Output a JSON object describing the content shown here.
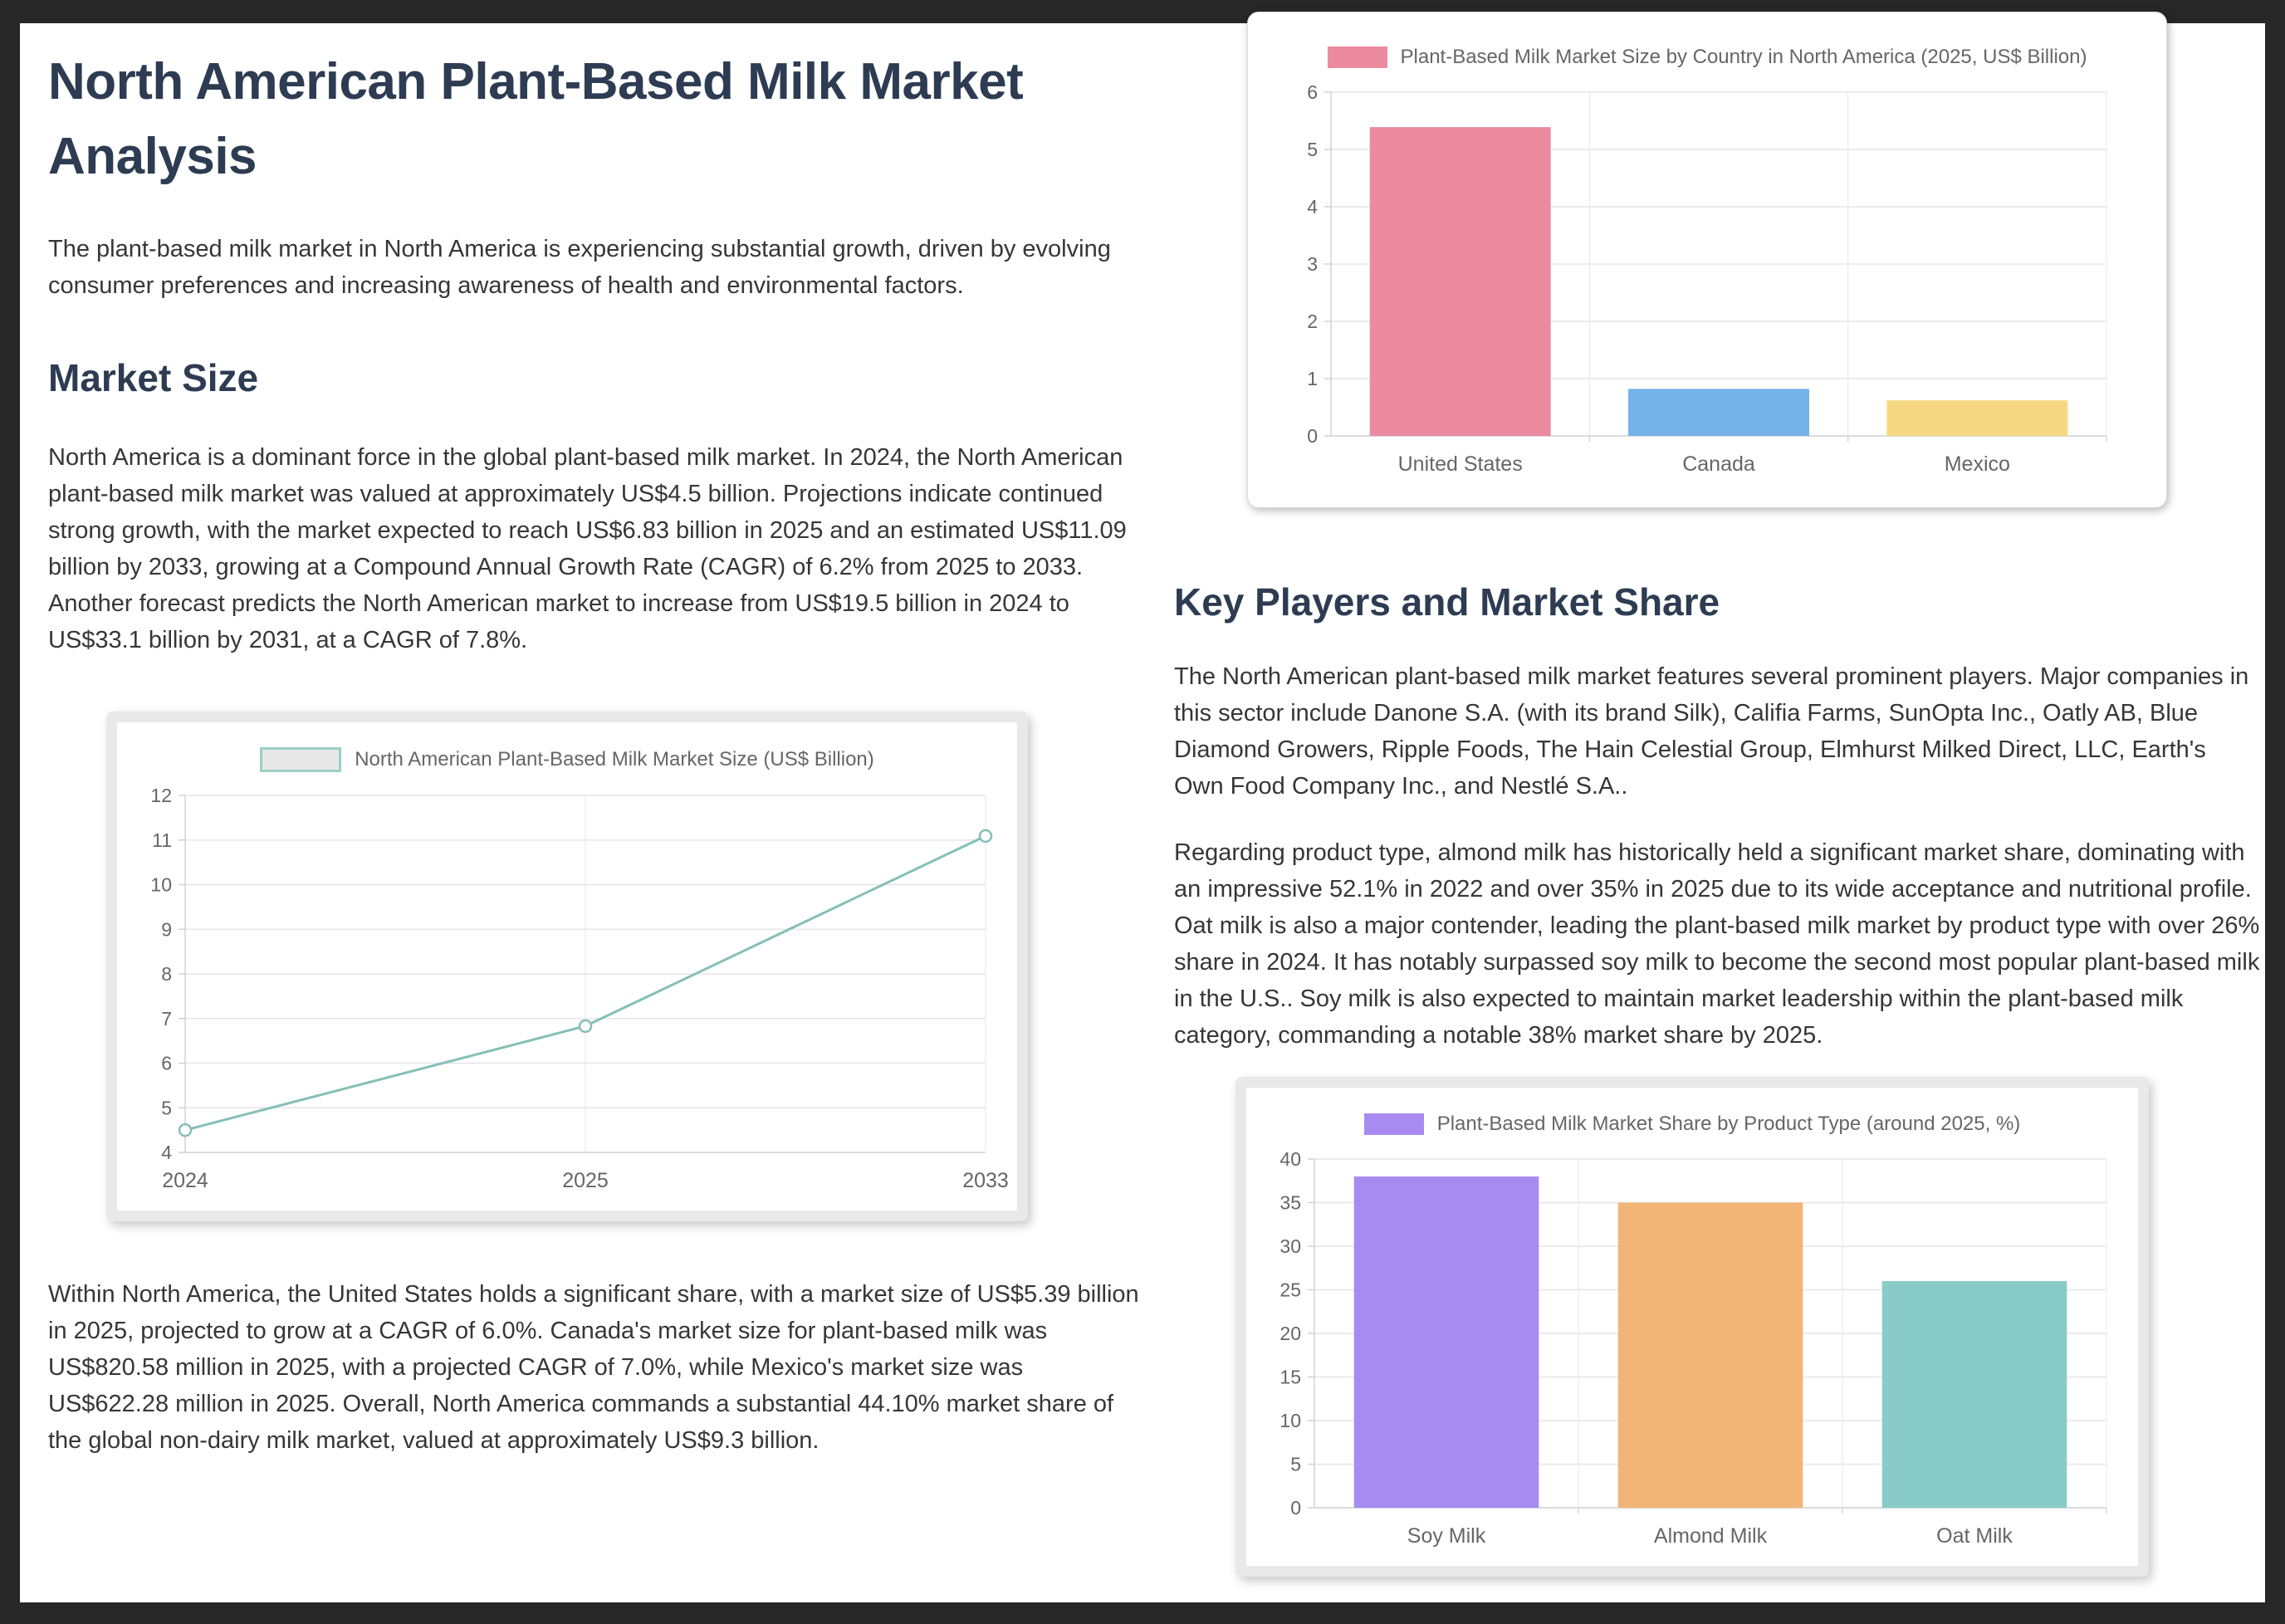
{
  "page": {
    "title": "North American Plant-Based Milk Market Analysis",
    "intro": "The plant-based milk market in North America is experiencing substantial growth, driven by evolving consumer preferences and increasing awareness of health and environmental factors.",
    "market_size": {
      "heading": "Market Size",
      "para1": "North America is a dominant force in the global plant-based milk market. In 2024, the North American plant-based milk market was valued at approximately US$4.5 billion. Projections indicate continued strong growth, with the market expected to reach US$6.83 billion in 2025 and an estimated US$11.09 billion by 2033, growing at a Compound Annual Growth Rate (CAGR) of 6.2% from 2025 to 2033. Another forecast predicts the North American market to increase from US$19.5 billion in 2024 to US$33.1 billion by 2031, at a CAGR of 7.8%.",
      "para2": "Within North America, the United States holds a significant share, with a market size of US$5.39 billion in 2025, projected to grow at a CAGR of 6.0%. Canada's market size for plant-based milk was US$820.58 million in 2025, with a projected CAGR of 7.0%, while Mexico's market size was US$622.28 million in 2025. Overall, North America commands a substantial 44.10% market share of the global non-dairy milk market, valued at approximately US$9.3 billion."
    },
    "key_players": {
      "heading": "Key Players and Market Share",
      "para1": "The North American plant-based milk market features several prominent players. Major companies in this sector include Danone S.A. (with its brand Silk), Califia Farms, SunOpta Inc., Oatly AB, Blue Diamond Growers, Ripple Foods, The Hain Celestial Group, Elmhurst Milked Direct, LLC, Earth's Own Food Company Inc., and Nestlé S.A..",
      "para2": "Regarding product type, almond milk has historically held a significant market share, dominating with an impressive 52.1% in 2022 and over 35% in 2025 due to its wide acceptance and nutritional profile. Oat milk is also a major contender, leading the plant-based milk market by product type with over 26% share in 2024. It has notably surpassed soy milk to become the second most popular plant-based milk in the U.S.. Soy milk is also expected to maintain market leadership within the plant-based milk category, commanding a notable 38% market share by 2025."
    }
  },
  "colors": {
    "page_background": "#272727",
    "card_background": "#ffffff",
    "heading": "#2d3c52",
    "body_text": "#363636",
    "axis_text": "#666666",
    "gridline": "#e6e6e6"
  },
  "chart_data": [
    {
      "id": "market-size-line",
      "type": "line",
      "legend": "North American Plant-Based Milk Market Size (US$ Billion)",
      "x": [
        "2024",
        "2025",
        "2033"
      ],
      "values": [
        4.5,
        6.83,
        11.09
      ],
      "ylim": [
        4,
        12
      ],
      "ytick_step": 1,
      "xlabel": "",
      "ylabel": "",
      "grid": true,
      "legend_position": "top",
      "line_color": "#85bfb7",
      "swatch_fill": "#e8e8e8",
      "swatch_border": "#9ccfc7"
    },
    {
      "id": "country-bar",
      "type": "bar",
      "legend": "Plant-Based Milk Market Size by Country in North America (2025, US$ Billion)",
      "categories": [
        "United States",
        "Canada",
        "Mexico"
      ],
      "values": [
        5.39,
        0.82,
        0.62
      ],
      "colors": [
        "#ec8ba0",
        "#74b2e8",
        "#f6d883"
      ],
      "ylim": [
        0,
        6
      ],
      "ytick_step": 1,
      "xlabel": "",
      "ylabel": "",
      "grid": true,
      "legend_position": "top",
      "swatch_fill": "#ec8ba0"
    },
    {
      "id": "product-share-bar",
      "type": "bar",
      "legend": "Plant-Based Milk Market Share by Product Type (around 2025, %)",
      "categories": [
        "Soy Milk",
        "Almond Milk",
        "Oat Milk"
      ],
      "values": [
        38,
        35,
        26
      ],
      "colors": [
        "#a88bf1",
        "#f3b577",
        "#89ccc7"
      ],
      "ylim": [
        0,
        40
      ],
      "ytick_step": 5,
      "xlabel": "",
      "ylabel": "",
      "grid": true,
      "legend_position": "top",
      "swatch_fill": "#a88bf1"
    }
  ]
}
